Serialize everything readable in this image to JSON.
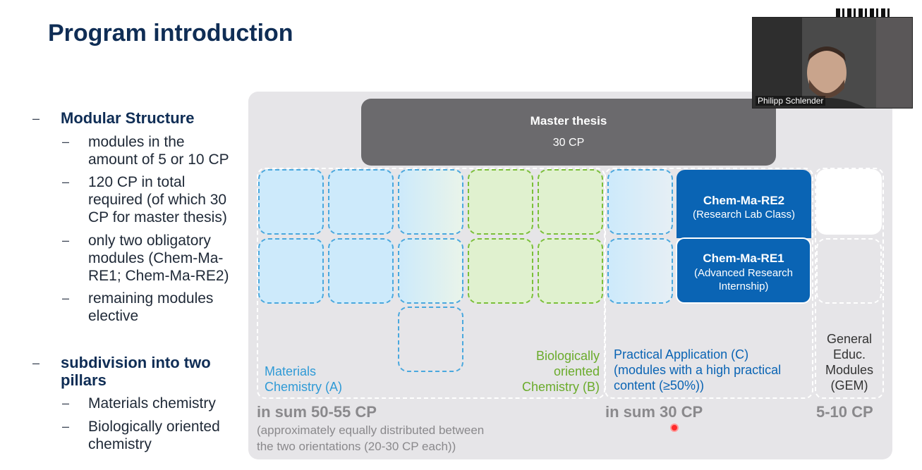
{
  "slide": {
    "title": "Program introduction",
    "bullets": {
      "modular": "Modular Structure",
      "modular_items": [
        [
          "modules in the",
          "amount of 5 or 10 CP"
        ],
        [
          "120 CP in total",
          "required (of which 30",
          "CP for master thesis)"
        ],
        [
          "only two obligatory",
          "modules (Chem-Ma-",
          "RE1; Chem-Ma-RE2)"
        ],
        [
          "remaining modules",
          "elective"
        ]
      ],
      "subdivision": [
        "subdivision into two",
        "pillars"
      ],
      "subdivision_items": [
        [
          "Materials chemistry"
        ],
        [
          "Biologically oriented",
          "chemistry"
        ]
      ]
    },
    "diagram": {
      "thesis_title": "Master thesis",
      "thesis_cp": "30 CP",
      "re2_name": "Chem-Ma-RE2",
      "re2_desc": "(Research Lab Class)",
      "re1_name": "Chem-Ma-RE1",
      "re1_desc": [
        "(Advanced Research",
        "Internship)"
      ],
      "materials_label": [
        "Materials",
        "Chemistry  (A)"
      ],
      "bio_label": [
        "Biologically",
        "oriented",
        "Chemistry (B)"
      ],
      "practical_label": [
        "Practical Application (C)",
        "(modules with a high practical",
        "content (≥50%))"
      ],
      "gem_label": [
        "General",
        "Educ.",
        "Modules",
        "(GEM)"
      ],
      "sum_ab": "in sum 50-55 CP",
      "sum_c": "in sum 30 CP",
      "sum_gem": "5-10 CP",
      "note": [
        "(approximately equally distributed between",
        "the two orientations (20-30 CP each))"
      ]
    }
  },
  "video": {
    "participant_name": "Philipp Schlender"
  },
  "colors": {
    "title": "#0f2d55",
    "materials": "#2f9ad6",
    "bio": "#6aab2b",
    "practical": "#0a64b4",
    "panel": "#e6e5e8"
  }
}
